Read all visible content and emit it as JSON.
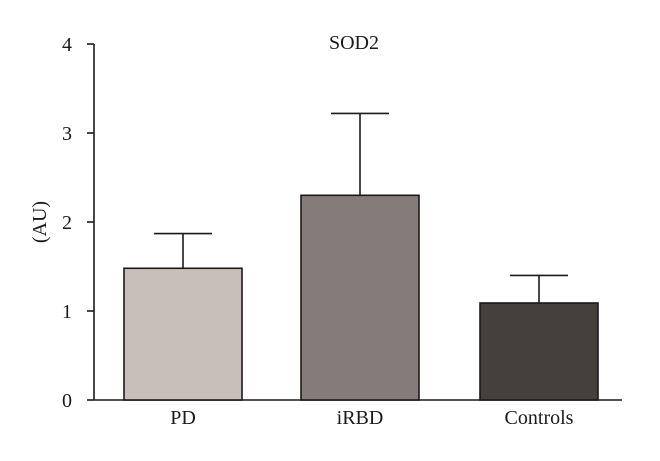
{
  "chart_data": {
    "type": "bar",
    "title": "SOD2",
    "xlabel": "",
    "ylabel": "(AU)",
    "ylim": [
      0,
      4
    ],
    "yticks": [
      "0",
      "1",
      "2",
      "3",
      "4"
    ],
    "categories": [
      "PD",
      "iRBD",
      "Controls"
    ],
    "values": [
      1.48,
      2.3,
      1.09
    ],
    "error_upper": [
      1.87,
      3.22,
      1.4
    ],
    "bar_colors": [
      "#c9bfba",
      "#857c79",
      "#46403d"
    ],
    "grid": false,
    "legend": "none"
  }
}
